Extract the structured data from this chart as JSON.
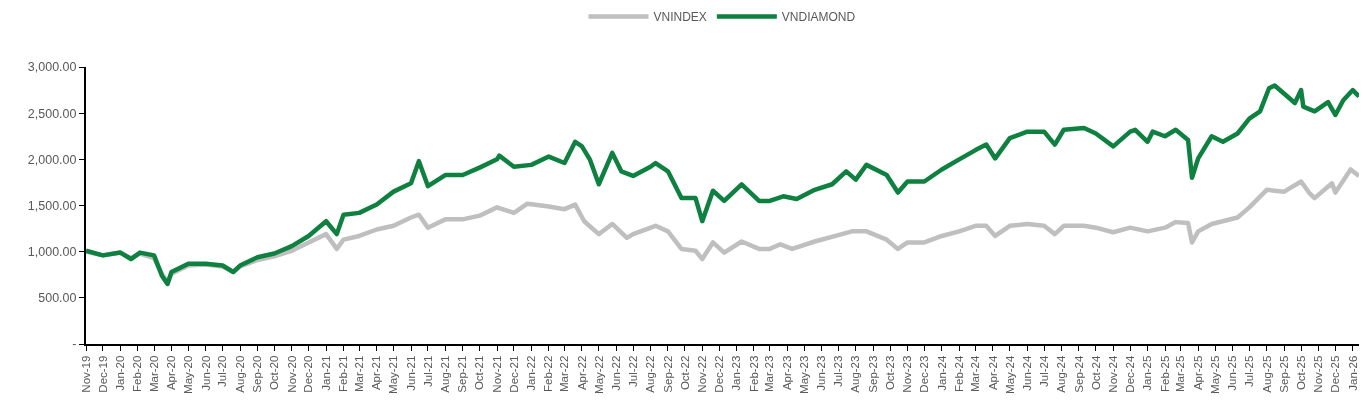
{
  "chart_data": {
    "type": "line",
    "legend": "top",
    "grid": false,
    "marker": "none",
    "line_style": "solid",
    "ylim": [
      0,
      3000
    ],
    "yticks": [
      {
        "value": 0,
        "label": "-"
      },
      {
        "value": 500,
        "label": "500.00"
      },
      {
        "value": 1000,
        "label": "1,000.00"
      },
      {
        "value": 1500,
        "label": "1,500.00"
      },
      {
        "value": 2000,
        "label": "2,000.00"
      },
      {
        "value": 2500,
        "label": "2,500.00"
      },
      {
        "value": 3000,
        "label": "3,000.00"
      }
    ],
    "xlim": [
      "2019-11-01",
      "2026-01-12"
    ],
    "xticks": [
      {
        "value": "2019-11-01",
        "label": "Nov-19"
      },
      {
        "value": "2019-12-01",
        "label": "Dec-19"
      },
      {
        "value": "2020-01-01",
        "label": "Jan-20"
      },
      {
        "value": "2020-02-01",
        "label": "Feb-20"
      },
      {
        "value": "2020-03-01",
        "label": "Mar-20"
      },
      {
        "value": "2020-04-01",
        "label": "Apr-20"
      },
      {
        "value": "2020-05-01",
        "label": "May-20"
      },
      {
        "value": "2020-06-01",
        "label": "Jun-20"
      },
      {
        "value": "2020-07-01",
        "label": "Jul-20"
      },
      {
        "value": "2020-08-01",
        "label": "Aug-20"
      },
      {
        "value": "2020-09-01",
        "label": "Sep-20"
      },
      {
        "value": "2020-10-01",
        "label": "Oct-20"
      },
      {
        "value": "2020-11-01",
        "label": "Nov-20"
      },
      {
        "value": "2020-12-01",
        "label": "Dec-20"
      },
      {
        "value": "2021-01-01",
        "label": "Jan-21"
      },
      {
        "value": "2021-02-01",
        "label": "Feb-21"
      },
      {
        "value": "2021-03-01",
        "label": "Mar-21"
      },
      {
        "value": "2021-04-01",
        "label": "Apr-21"
      },
      {
        "value": "2021-05-01",
        "label": "May-21"
      },
      {
        "value": "2021-06-01",
        "label": "Jun-21"
      },
      {
        "value": "2021-07-01",
        "label": "Jul-21"
      },
      {
        "value": "2021-08-01",
        "label": "Aug-21"
      },
      {
        "value": "2021-09-01",
        "label": "Sep-21"
      },
      {
        "value": "2021-10-01",
        "label": "Oct-21"
      },
      {
        "value": "2021-11-01",
        "label": "Nov-21"
      },
      {
        "value": "2021-12-01",
        "label": "Dec-21"
      },
      {
        "value": "2022-01-01",
        "label": "Jan-22"
      },
      {
        "value": "2022-02-01",
        "label": "Feb-22"
      },
      {
        "value": "2022-03-01",
        "label": "Mar-22"
      },
      {
        "value": "2022-04-01",
        "label": "Apr-22"
      },
      {
        "value": "2022-05-01",
        "label": "May-22"
      },
      {
        "value": "2022-06-01",
        "label": "Jun-22"
      },
      {
        "value": "2022-07-01",
        "label": "Jul-22"
      },
      {
        "value": "2022-08-01",
        "label": "Aug-22"
      },
      {
        "value": "2022-09-01",
        "label": "Sep-22"
      },
      {
        "value": "2022-10-01",
        "label": "Oct-22"
      },
      {
        "value": "2022-11-01",
        "label": "Nov-22"
      },
      {
        "value": "2022-12-01",
        "label": "Dec-22"
      },
      {
        "value": "2023-01-01",
        "label": "Jan-23"
      },
      {
        "value": "2023-02-01",
        "label": "Feb-23"
      },
      {
        "value": "2023-03-01",
        "label": "Mar-23"
      },
      {
        "value": "2023-04-01",
        "label": "Apr-23"
      },
      {
        "value": "2023-05-01",
        "label": "May-23"
      },
      {
        "value": "2023-06-01",
        "label": "Jun-23"
      },
      {
        "value": "2023-07-01",
        "label": "Jul-23"
      },
      {
        "value": "2023-08-01",
        "label": "Aug-23"
      },
      {
        "value": "2023-09-01",
        "label": "Sep-23"
      },
      {
        "value": "2023-10-01",
        "label": "Oct-23"
      },
      {
        "value": "2023-11-01",
        "label": "Nov-23"
      },
      {
        "value": "2023-12-01",
        "label": "Dec-23"
      },
      {
        "value": "2024-01-01",
        "label": "Jan-24"
      },
      {
        "value": "2024-02-01",
        "label": "Feb-24"
      },
      {
        "value": "2024-03-01",
        "label": "Mar-24"
      },
      {
        "value": "2024-04-01",
        "label": "Apr-24"
      },
      {
        "value": "2024-05-01",
        "label": "May-24"
      },
      {
        "value": "2024-06-01",
        "label": "Jun-24"
      },
      {
        "value": "2024-07-01",
        "label": "Jul-24"
      },
      {
        "value": "2024-08-01",
        "label": "Aug-24"
      },
      {
        "value": "2024-09-01",
        "label": "Sep-24"
      },
      {
        "value": "2024-10-01",
        "label": "Oct-24"
      },
      {
        "value": "2024-11-01",
        "label": "Nov-24"
      },
      {
        "value": "2024-12-01",
        "label": "Dec-24"
      },
      {
        "value": "2025-01-01",
        "label": "Jan-25"
      },
      {
        "value": "2025-02-01",
        "label": "Feb-25"
      },
      {
        "value": "2025-03-01",
        "label": "Mar-25"
      },
      {
        "value": "2025-04-01",
        "label": "Apr-25"
      },
      {
        "value": "2025-05-01",
        "label": "May-25"
      },
      {
        "value": "2025-06-01",
        "label": "Jun-25"
      },
      {
        "value": "2025-07-01",
        "label": "Jul-25"
      },
      {
        "value": "2025-08-01",
        "label": "Aug-25"
      },
      {
        "value": "2025-09-01",
        "label": "Sep-25"
      },
      {
        "value": "2025-10-01",
        "label": "Oct-25"
      },
      {
        "value": "2025-11-01",
        "label": "Nov-25"
      },
      {
        "value": "2025-12-01",
        "label": "Dec-25"
      },
      {
        "value": "2026-01-01",
        "label": "Jan-26"
      }
    ],
    "series": [
      {
        "name": "VNINDEX",
        "color": "#bfbfbf",
        "x": [
          "2019-11-01",
          "2019-12-01",
          "2020-01-01",
          "2020-01-20",
          "2020-02-05",
          "2020-03-01",
          "2020-03-15",
          "2020-03-25",
          "2020-04-01",
          "2020-05-01",
          "2020-06-01",
          "2020-07-01",
          "2020-07-20",
          "2020-08-01",
          "2020-09-01",
          "2020-10-01",
          "2020-11-01",
          "2020-12-01",
          "2021-01-01",
          "2021-01-20",
          "2021-02-01",
          "2021-03-01",
          "2021-04-01",
          "2021-05-01",
          "2021-06-01",
          "2021-06-15",
          "2021-07-01",
          "2021-08-01",
          "2021-09-01",
          "2021-10-01",
          "2021-11-01",
          "2021-12-01",
          "2021-12-25",
          "2022-02-01",
          "2022-03-01",
          "2022-03-20",
          "2022-04-05",
          "2022-05-01",
          "2022-05-25",
          "2022-06-20",
          "2022-07-01",
          "2022-08-10",
          "2022-09-01",
          "2022-09-25",
          "2022-10-20",
          "2022-11-01",
          "2022-11-20",
          "2022-12-10",
          "2023-01-10",
          "2023-02-10",
          "2023-03-01",
          "2023-03-20",
          "2023-04-10",
          "2023-05-20",
          "2023-07-01",
          "2023-07-25",
          "2023-08-20",
          "2023-09-25",
          "2023-10-15",
          "2023-11-01",
          "2023-12-01",
          "2024-01-01",
          "2024-02-01",
          "2024-03-01",
          "2024-03-20",
          "2024-04-05",
          "2024-05-01",
          "2024-06-01",
          "2024-07-01",
          "2024-07-20",
          "2024-08-05",
          "2024-09-10",
          "2024-10-01",
          "2024-11-01",
          "2024-12-01",
          "2025-01-01",
          "2025-02-01",
          "2025-02-20",
          "2025-03-14",
          "2025-03-21",
          "2025-04-01",
          "2025-04-25",
          "2025-06-10",
          "2025-07-01",
          "2025-08-01",
          "2025-09-01",
          "2025-10-01",
          "2025-10-15",
          "2025-10-25",
          "2025-11-25",
          "2025-12-01",
          "2025-12-28",
          "2026-01-12"
        ],
        "values": [
          1000,
          960,
          990,
          930,
          980,
          930,
          760,
          670,
          760,
          850,
          860,
          840,
          780,
          840,
          910,
          950,
          1010,
          1100,
          1190,
          1030,
          1130,
          1170,
          1240,
          1280,
          1370,
          1400,
          1260,
          1350,
          1350,
          1390,
          1480,
          1420,
          1520,
          1490,
          1460,
          1510,
          1330,
          1190,
          1300,
          1150,
          1190,
          1280,
          1220,
          1030,
          1010,
          920,
          1100,
          990,
          1110,
          1030,
          1030,
          1080,
          1030,
          1110,
          1180,
          1220,
          1220,
          1130,
          1030,
          1100,
          1100,
          1170,
          1220,
          1280,
          1280,
          1170,
          1280,
          1300,
          1280,
          1190,
          1280,
          1280,
          1260,
          1210,
          1260,
          1220,
          1260,
          1320,
          1310,
          1100,
          1220,
          1300,
          1370,
          1480,
          1670,
          1650,
          1760,
          1640,
          1580,
          1740,
          1640,
          1890,
          1820
        ]
      },
      {
        "name": "VNDIAMOND",
        "color": "#0e8040",
        "x": [
          "2019-11-01",
          "2019-12-01",
          "2020-01-01",
          "2020-01-20",
          "2020-02-05",
          "2020-03-01",
          "2020-03-15",
          "2020-03-25",
          "2020-04-01",
          "2020-05-01",
          "2020-06-01",
          "2020-07-01",
          "2020-07-20",
          "2020-08-01",
          "2020-09-01",
          "2020-10-01",
          "2020-11-01",
          "2020-12-01",
          "2021-01-01",
          "2021-01-20",
          "2021-02-01",
          "2021-03-01",
          "2021-04-01",
          "2021-05-01",
          "2021-06-01",
          "2021-06-15",
          "2021-07-01",
          "2021-08-01",
          "2021-09-01",
          "2021-10-01",
          "2021-11-01",
          "2021-11-05",
          "2021-12-01",
          "2022-01-01",
          "2022-02-01",
          "2022-03-01",
          "2022-03-20",
          "2022-04-01",
          "2022-04-15",
          "2022-05-01",
          "2022-05-25",
          "2022-06-10",
          "2022-07-01",
          "2022-08-01",
          "2022-08-10",
          "2022-09-01",
          "2022-09-25",
          "2022-10-20",
          "2022-11-01",
          "2022-11-20",
          "2022-12-10",
          "2023-01-10",
          "2023-02-10",
          "2023-03-01",
          "2023-03-25",
          "2023-04-18",
          "2023-05-20",
          "2023-06-20",
          "2023-07-15",
          "2023-08-01",
          "2023-08-20",
          "2023-09-25",
          "2023-10-15",
          "2023-11-01",
          "2023-12-01",
          "2024-01-01",
          "2024-02-01",
          "2024-03-01",
          "2024-03-20",
          "2024-04-05",
          "2024-05-01",
          "2024-06-01",
          "2024-07-01",
          "2024-07-20",
          "2024-08-05",
          "2024-09-10",
          "2024-10-01",
          "2024-11-01",
          "2024-12-01",
          "2024-12-10",
          "2025-01-01",
          "2025-01-10",
          "2025-02-01",
          "2025-02-20",
          "2025-03-14",
          "2025-03-21",
          "2025-04-01",
          "2025-04-25",
          "2025-05-15",
          "2025-06-10",
          "2025-07-01",
          "2025-07-20",
          "2025-08-05",
          "2025-08-15",
          "2025-09-01",
          "2025-09-20",
          "2025-10-01",
          "2025-10-05",
          "2025-10-25",
          "2025-11-18",
          "2025-12-01",
          "2025-12-15",
          "2026-01-01",
          "2026-01-12"
        ],
        "values": [
          1010,
          960,
          990,
          920,
          990,
          960,
          740,
          650,
          780,
          870,
          870,
          850,
          780,
          850,
          940,
          980,
          1060,
          1170,
          1330,
          1190,
          1400,
          1420,
          1510,
          1650,
          1740,
          1980,
          1710,
          1830,
          1830,
          1910,
          2000,
          2040,
          1920,
          1940,
          2030,
          1960,
          2190,
          2140,
          2000,
          1730,
          2070,
          1870,
          1820,
          1920,
          1960,
          1870,
          1580,
          1580,
          1330,
          1660,
          1550,
          1730,
          1550,
          1550,
          1600,
          1570,
          1670,
          1730,
          1870,
          1780,
          1940,
          1830,
          1640,
          1760,
          1760,
          1890,
          2000,
          2100,
          2160,
          2010,
          2230,
          2300,
          2300,
          2160,
          2320,
          2340,
          2280,
          2140,
          2300,
          2320,
          2190,
          2300,
          2250,
          2320,
          2210,
          1800,
          2010,
          2250,
          2190,
          2280,
          2440,
          2520,
          2770,
          2800,
          2710,
          2610,
          2750,
          2570,
          2520,
          2620,
          2480,
          2640,
          2750,
          2680
        ]
      }
    ]
  }
}
